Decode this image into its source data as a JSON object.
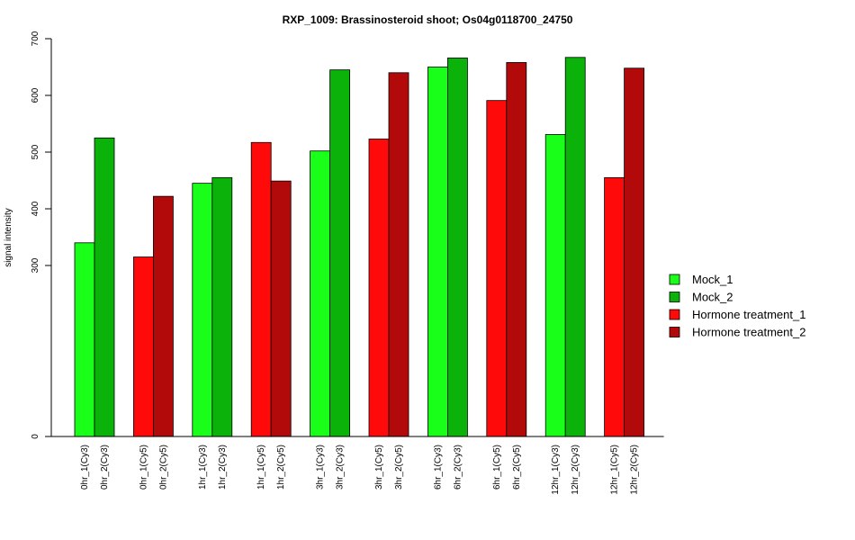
{
  "chart_data": {
    "type": "bar",
    "title": "RXP_1009: Brassinosteroid shoot; Os04g0118700_24750",
    "ylabel": "signal intensity",
    "xlabel": "",
    "yticks": [
      0,
      300,
      400,
      500,
      600,
      700
    ],
    "ylim_note": "y axis is non-linear: 0 to 300 compressed, 300 to 700 linear",
    "categories": [
      "0hr_1(Cy3)",
      "0hr_2(Cy3)",
      "0hr_1(Cy5)",
      "0hr_2(Cy5)",
      "1hr_1(Cy3)",
      "1hr_2(Cy3)",
      "1hr_1(Cy5)",
      "1hr_2(Cy5)",
      "3hr_1(Cy3)",
      "3hr_2(Cy3)",
      "3hr_1(Cy5)",
      "3hr_2(Cy5)",
      "6hr_1(Cy3)",
      "6hr_2(Cy3)",
      "6hr_1(Cy5)",
      "6hr_2(Cy5)",
      "12hr_1(Cy3)",
      "12hr_2(Cy3)",
      "12hr_1(Cy5)",
      "12hr_2(Cy5)"
    ],
    "values": [
      340,
      525,
      315,
      422,
      445,
      455,
      517,
      449,
      502,
      645,
      523,
      640,
      650,
      666,
      591,
      658,
      531,
      667,
      455,
      648
    ],
    "series_index": [
      0,
      1,
      2,
      3,
      0,
      1,
      2,
      3,
      0,
      1,
      2,
      3,
      0,
      1,
      2,
      3,
      0,
      1,
      2,
      3
    ],
    "series": [
      {
        "name": "Mock_1",
        "color": "#19ff19"
      },
      {
        "name": "Mock_2",
        "color": "#0ab20a"
      },
      {
        "name": "Hormone treatment_1",
        "color": "#ff0a0a"
      },
      {
        "name": "Hormone treatment_2",
        "color": "#b20a0a"
      }
    ],
    "legend_position": "right",
    "grid": false
  }
}
